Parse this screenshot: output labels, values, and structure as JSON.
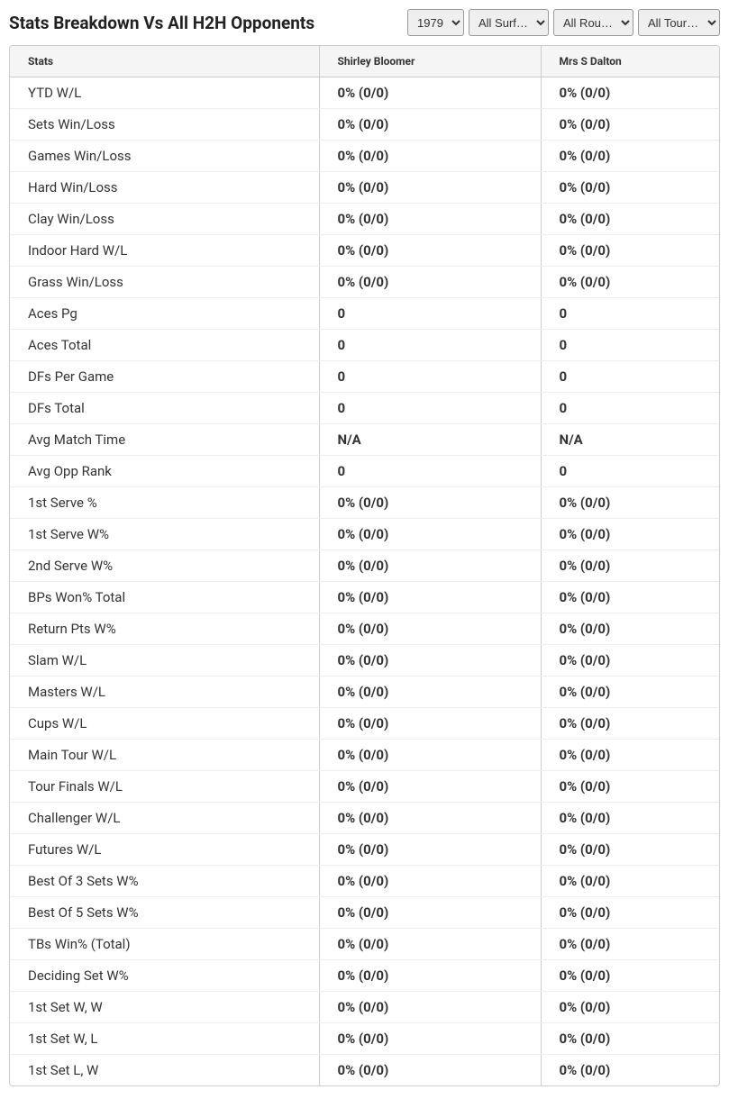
{
  "header": {
    "title": "Stats Breakdown Vs All H2H Opponents"
  },
  "filters": {
    "year": {
      "selected": "1979"
    },
    "surface": {
      "selected": "All Surf…"
    },
    "round": {
      "selected": "All Rou…"
    },
    "tournament": {
      "selected": "All Tour…"
    }
  },
  "table": {
    "headers": {
      "stats": "Stats",
      "player1": "Shirley Bloomer",
      "player2": "Mrs S Dalton"
    },
    "rows": [
      {
        "label": "YTD W/L",
        "p1": "0% (0/0)",
        "p2": "0% (0/0)"
      },
      {
        "label": "Sets Win/Loss",
        "p1": "0% (0/0)",
        "p2": "0% (0/0)"
      },
      {
        "label": "Games Win/Loss",
        "p1": "0% (0/0)",
        "p2": "0% (0/0)"
      },
      {
        "label": "Hard Win/Loss",
        "p1": "0% (0/0)",
        "p2": "0% (0/0)"
      },
      {
        "label": "Clay Win/Loss",
        "p1": "0% (0/0)",
        "p2": "0% (0/0)"
      },
      {
        "label": "Indoor Hard W/L",
        "p1": "0% (0/0)",
        "p2": "0% (0/0)"
      },
      {
        "label": "Grass Win/Loss",
        "p1": "0% (0/0)",
        "p2": "0% (0/0)"
      },
      {
        "label": "Aces Pg",
        "p1": "0",
        "p2": "0"
      },
      {
        "label": "Aces Total",
        "p1": "0",
        "p2": "0"
      },
      {
        "label": "DFs Per Game",
        "p1": "0",
        "p2": "0"
      },
      {
        "label": "DFs Total",
        "p1": "0",
        "p2": "0"
      },
      {
        "label": "Avg Match Time",
        "p1": "N/A",
        "p2": "N/A"
      },
      {
        "label": "Avg Opp Rank",
        "p1": "0",
        "p2": "0"
      },
      {
        "label": "1st Serve %",
        "p1": "0% (0/0)",
        "p2": "0% (0/0)"
      },
      {
        "label": "1st Serve W%",
        "p1": "0% (0/0)",
        "p2": "0% (0/0)"
      },
      {
        "label": "2nd Serve W%",
        "p1": "0% (0/0)",
        "p2": "0% (0/0)"
      },
      {
        "label": "BPs Won% Total",
        "p1": "0% (0/0)",
        "p2": "0% (0/0)"
      },
      {
        "label": "Return Pts W%",
        "p1": "0% (0/0)",
        "p2": "0% (0/0)"
      },
      {
        "label": "Slam W/L",
        "p1": "0% (0/0)",
        "p2": "0% (0/0)"
      },
      {
        "label": "Masters W/L",
        "p1": "0% (0/0)",
        "p2": "0% (0/0)"
      },
      {
        "label": "Cups W/L",
        "p1": "0% (0/0)",
        "p2": "0% (0/0)"
      },
      {
        "label": "Main Tour W/L",
        "p1": "0% (0/0)",
        "p2": "0% (0/0)"
      },
      {
        "label": "Tour Finals W/L",
        "p1": "0% (0/0)",
        "p2": "0% (0/0)"
      },
      {
        "label": "Challenger W/L",
        "p1": "0% (0/0)",
        "p2": "0% (0/0)"
      },
      {
        "label": "Futures W/L",
        "p1": "0% (0/0)",
        "p2": "0% (0/0)"
      },
      {
        "label": "Best Of 3 Sets W%",
        "p1": "0% (0/0)",
        "p2": "0% (0/0)"
      },
      {
        "label": "Best Of 5 Sets W%",
        "p1": "0% (0/0)",
        "p2": "0% (0/0)"
      },
      {
        "label": "TBs Win% (Total)",
        "p1": "0% (0/0)",
        "p2": "0% (0/0)"
      },
      {
        "label": "Deciding Set W%",
        "p1": "0% (0/0)",
        "p2": "0% (0/0)"
      },
      {
        "label": "1st Set W, W",
        "p1": "0% (0/0)",
        "p2": "0% (0/0)"
      },
      {
        "label": "1st Set W, L",
        "p1": "0% (0/0)",
        "p2": "0% (0/0)"
      },
      {
        "label": "1st Set L, W",
        "p1": "0% (0/0)",
        "p2": "0% (0/0)"
      }
    ]
  }
}
